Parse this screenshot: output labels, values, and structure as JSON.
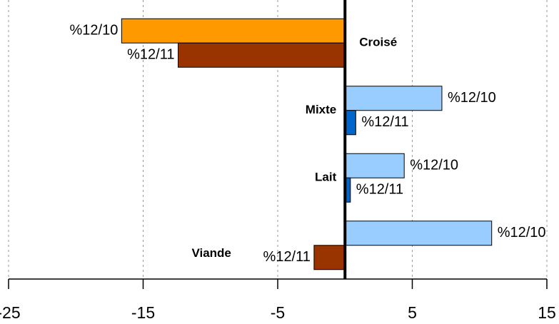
{
  "chart_data": {
    "type": "hbar",
    "categories": [
      "Croisé",
      "Mixte",
      "Lait",
      "Viande"
    ],
    "series": [
      {
        "name": "%12/10",
        "colors": [
          "#ff9900",
          "#99ccff",
          "#99ccff",
          "#99ccff"
        ],
        "values": [
          -16.6,
          7.2,
          4.4,
          10.9
        ]
      },
      {
        "name": "%12/11",
        "colors": [
          "#993300",
          "#0066cc",
          "#0066cc",
          "#993300"
        ],
        "values": [
          -12.4,
          0.8,
          0.4,
          -2.3
        ]
      }
    ],
    "xlim": [
      -25,
      15
    ],
    "xticks": [
      -25,
      -15,
      -5,
      5,
      15
    ],
    "grid": true
  }
}
